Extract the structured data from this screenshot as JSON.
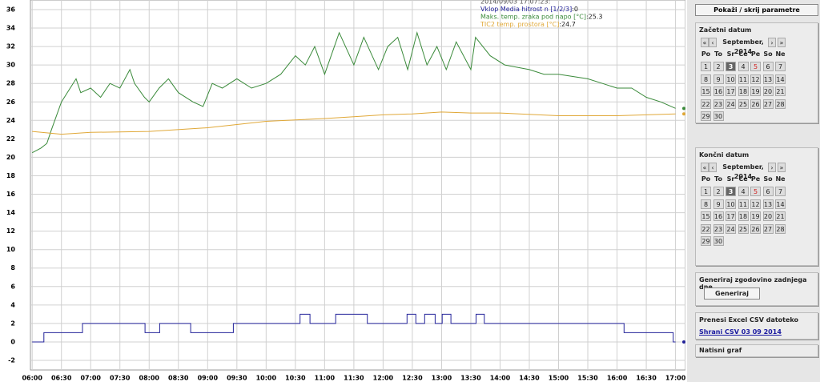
{
  "chart_data": {
    "type": "line",
    "legend_timestamp": "2014/09/03 17:07:23:",
    "legend_sep": ":",
    "xlim": [
      5.97,
      17.17
    ],
    "ylim": [
      -3.04,
      37.04
    ],
    "grid": true,
    "xticks": [
      {
        "value": 6,
        "label": "06:00"
      },
      {
        "value": 6.5,
        "label": "06:30"
      },
      {
        "value": 7,
        "label": "07:00"
      },
      {
        "value": 7.5,
        "label": "07:30"
      },
      {
        "value": 8,
        "label": "08:00"
      },
      {
        "value": 8.5,
        "label": "08:30"
      },
      {
        "value": 9,
        "label": "09:00"
      },
      {
        "value": 9.5,
        "label": "09:30"
      },
      {
        "value": 10,
        "label": "10:00"
      },
      {
        "value": 10.5,
        "label": "10:30"
      },
      {
        "value": 11,
        "label": "11:00"
      },
      {
        "value": 11.5,
        "label": "11:30"
      },
      {
        "value": 12,
        "label": "12:00"
      },
      {
        "value": 12.5,
        "label": "12:30"
      },
      {
        "value": 13,
        "label": "13:00"
      },
      {
        "value": 13.5,
        "label": "13:30"
      },
      {
        "value": 14,
        "label": "14:00"
      },
      {
        "value": 14.5,
        "label": "14:30"
      },
      {
        "value": 15,
        "label": "15:00"
      },
      {
        "value": 15.5,
        "label": "15:30"
      },
      {
        "value": 16,
        "label": "16:00"
      },
      {
        "value": 16.5,
        "label": "16:30"
      },
      {
        "value": 17,
        "label": "17:00"
      }
    ],
    "yticks": [
      -2,
      0,
      2,
      4,
      6,
      8,
      10,
      12,
      14,
      16,
      18,
      20,
      22,
      24,
      26,
      28,
      30,
      32,
      34,
      36
    ],
    "series": [
      {
        "name": "Vklop Media hitrost n [1/2/3]",
        "color": "#23239a",
        "x": [
          6,
          6.2,
          6.2,
          6.86,
          6.86,
          7.93,
          7.93,
          8.18,
          8.18,
          8.71,
          8.71,
          9.44,
          9.44,
          10.58,
          10.58,
          10.75,
          10.75,
          11.19,
          11.19,
          11.73,
          11.73,
          12.41,
          12.41,
          12.56,
          12.56,
          12.71,
          12.71,
          12.89,
          12.89,
          13.01,
          13.01,
          13.16,
          13.16,
          13.59,
          13.59,
          13.73,
          13.73,
          16.12,
          16.12,
          16.96,
          16.96,
          17
        ],
        "values": [
          0,
          0,
          1,
          1,
          2,
          2,
          1,
          1,
          2,
          2,
          1,
          1,
          2,
          2,
          3,
          3,
          2,
          2,
          3,
          3,
          2,
          2,
          3,
          3,
          2,
          2,
          3,
          3,
          2,
          2,
          3,
          3,
          2,
          2,
          3,
          3,
          2,
          2,
          1,
          1,
          0,
          0
        ]
      },
      {
        "name": "Maks. temp. zraka pod napo [°C]",
        "color": "#3a8a3a",
        "x": [
          6,
          6.15,
          6.25,
          6.33,
          6.5,
          6.75,
          6.83,
          7,
          7.17,
          7.33,
          7.5,
          7.67,
          7.75,
          7.92,
          8,
          8.17,
          8.33,
          8.5,
          8.75,
          8.92,
          9.08,
          9.25,
          9.5,
          9.75,
          10,
          10.25,
          10.5,
          10.67,
          10.83,
          11,
          11.25,
          11.5,
          11.67,
          11.92,
          12.08,
          12.25,
          12.42,
          12.58,
          12.75,
          12.92,
          13.08,
          13.25,
          13.5,
          13.58,
          13.83,
          14.08,
          14.5,
          14.75,
          15,
          15.5,
          15.75,
          16,
          16.25,
          16.5,
          16.75,
          17
        ],
        "values": [
          20.5,
          21,
          21.5,
          23,
          26,
          28.5,
          27,
          27.5,
          26.5,
          28,
          27.5,
          29.5,
          28,
          26.5,
          26,
          27.5,
          28.5,
          27,
          26,
          25.5,
          28,
          27.5,
          28.5,
          27.5,
          28,
          29,
          31,
          30,
          32,
          29,
          33.5,
          30,
          33,
          29.5,
          32,
          33,
          29.5,
          33.5,
          30,
          32,
          29.5,
          32.5,
          29.5,
          33,
          31,
          30,
          29.5,
          29,
          29,
          28.5,
          28,
          27.5,
          27.5,
          26.5,
          26,
          25.3
        ]
      },
      {
        "name": "TIC2 temp. prostora [°C]",
        "color": "#e0a838",
        "x": [
          6,
          6.5,
          7,
          8,
          9,
          10,
          11,
          11.5,
          12,
          12.5,
          13,
          13.5,
          14,
          15,
          16,
          17
        ],
        "values": [
          22.8,
          22.5,
          22.7,
          22.8,
          23.2,
          23.9,
          24.2,
          24.4,
          24.6,
          24.7,
          24.9,
          24.8,
          24.8,
          24.5,
          24.5,
          24.7
        ]
      }
    ]
  },
  "sidebar": {
    "toggle": "Pokaži / skrij parametre",
    "calendars": [
      {
        "title": "Začetni datum",
        "nav": [
          "«",
          "‹",
          "September, 2014",
          "›",
          "»"
        ],
        "weekdays": [
          "Po",
          "To",
          "Sr",
          "Ce",
          "Pe",
          "So",
          "Ne"
        ],
        "days": [
          1,
          2,
          3,
          4,
          5,
          6,
          7,
          8,
          9,
          10,
          11,
          12,
          13,
          14,
          15,
          16,
          17,
          18,
          19,
          20,
          21,
          22,
          23,
          24,
          25,
          26,
          27,
          28,
          29,
          30
        ],
        "selected": 3,
        "marked": 5
      },
      {
        "title": "Končni datum",
        "nav": [
          "«",
          "‹",
          "September, 2014",
          "›",
          "»"
        ],
        "weekdays": [
          "Po",
          "To",
          "Sr",
          "Ce",
          "Pe",
          "So",
          "Ne"
        ],
        "days": [
          1,
          2,
          3,
          4,
          5,
          6,
          7,
          8,
          9,
          10,
          11,
          12,
          13,
          14,
          15,
          16,
          17,
          18,
          19,
          20,
          21,
          22,
          23,
          24,
          25,
          26,
          27,
          28,
          29,
          30
        ],
        "selected": 3,
        "marked": 5
      }
    ],
    "generate_title": "Generiraj zgodovino zadnjega dne",
    "generate_button": "Generiraj",
    "csv_title": "Prenesi Excel CSV datoteko",
    "csv_link": "Shrani CSV 03 09 2014",
    "print": "Natisni graf"
  }
}
